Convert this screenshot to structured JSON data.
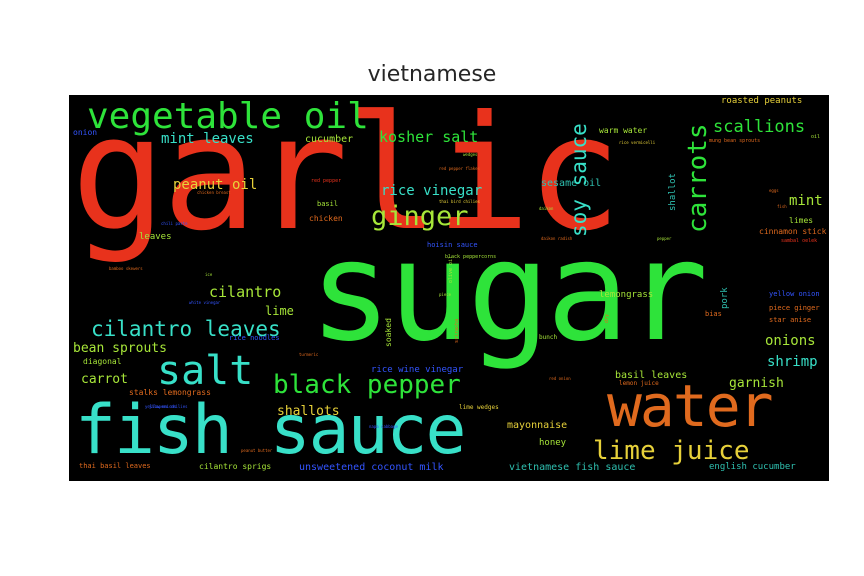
{
  "title": "vietnamese",
  "colors": {
    "background": "#000000",
    "red": "#e8321c",
    "green": "#2ee33a",
    "cyan": "#38e0c8",
    "lime": "#a7e639",
    "blue": "#3355ff",
    "orange": "#e06a1e",
    "yellow": "#e7d13a",
    "teal": "#2fc0b0"
  },
  "words": {
    "garlic": "garlic",
    "sugar": "sugar",
    "fish_sauce": "fish sauce",
    "water": "water",
    "vegetable_oil": "vegetable oil",
    "salt": "salt",
    "black_pepper": "black pepper",
    "ginger": "ginger",
    "carrots": "carrots",
    "soy_sauce": "soy sauce",
    "lime_juice": "lime juice",
    "cilantro_leaves": "cilantro leaves",
    "kosher_salt": "kosher salt",
    "mint_leaves": "mint leaves",
    "scallions": "scallions",
    "rice_vinegar": "rice vinegar",
    "peanut_oil": "peanut oil",
    "cilantro": "cilantro",
    "mint": "mint",
    "shrimp": "shrimp",
    "onions": "onions",
    "bean_sprouts": "bean sprouts",
    "carrot": "carrot",
    "shallots": "shallots",
    "garnish": "garnish",
    "lime": "lime",
    "cucumber": "cucumber",
    "roasted_peanuts": "roasted peanuts",
    "sesame_oil": "sesame oil",
    "warm_water": "warm water",
    "lemongrass": "lemongrass",
    "basil_leaves": "basil leaves",
    "mayonnaise": "mayonnaise",
    "honey": "honey",
    "unsweetened_coconut_milk": "unsweetened coconut milk",
    "vietnamese_fish_sauce": "vietnamese fish sauce",
    "english_cucumber": "english cucumber",
    "rice_wine_vinegar": "rice wine vinegar",
    "hoisin_sauce": "hoisin sauce",
    "leaves": "leaves",
    "diagonal": "diagonal",
    "stalks_lemongrass": "stalks lemongrass",
    "thai_basil_leaves": "thai basil leaves",
    "cilantro_sprigs": "cilantro sprigs",
    "onion": "onion",
    "chicken": "chicken",
    "basil": "basil",
    "red_pepper": "red pepper",
    "limes": "limes",
    "cinnamon_stick": "cinnamon stick",
    "yellow_onion": "yellow onion",
    "piece_ginger": "piece ginger",
    "star_anise": "star anise",
    "lemon_juice": "lemon juice",
    "lime_wedges": "lime wedges",
    "rice_noodles": "rice noodles",
    "soaked": "soaked",
    "bunch": "bunch",
    "pork": "pork",
    "shallot": "shallot",
    "mung_bean_sprouts": "mung bean sprouts",
    "rice_vermicelli": "rice vermicelli",
    "red_pepper_flakes": "red pepper flakes",
    "thai_bird_chilies": "thai bird chilies",
    "black_peppercorns": "black peppercorns",
    "chicken_breast": "chicken breast",
    "chili_paste": "chili paste",
    "white_vinegar": "white vinegar",
    "bamboo_skewers": "bamboo skewers",
    "olive_oil": "olive oil",
    "sriracha": "sriracha",
    "turmeric": "turmeric",
    "peanut_butter": "peanut butter",
    "jalapeno_chilies": "jalapeno chilies",
    "wedges": "wedges",
    "daikon": "daikon",
    "daikon_radish": "daikon radish",
    "pepper": "pepper",
    "sambal_oelek": "sambal oelek",
    "piece": "piece",
    "dry": "dry",
    "bias": "bias",
    "red_onion": "red onion",
    "oil": "oil",
    "eggs": "eggs",
    "napa_cabbage": "napa cabbage",
    "ice": "ice",
    "yellow_onions": "yellow onions",
    "fish": "fish"
  }
}
